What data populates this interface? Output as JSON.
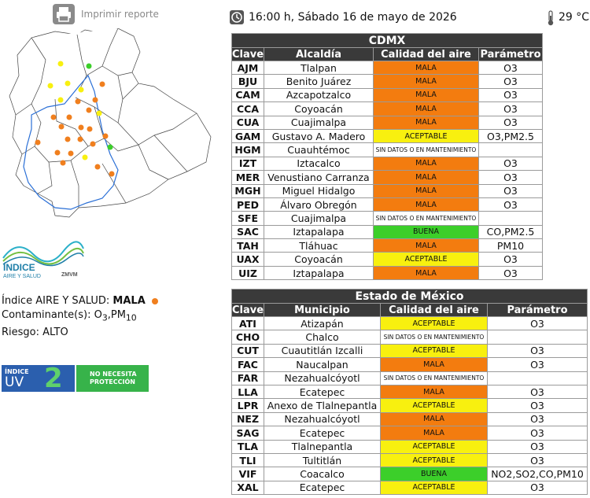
{
  "print": {
    "label": "Imprimir reporte",
    "icon": "printer-icon"
  },
  "header": {
    "datetime": "16:00 h, Sábado 16 de mayo de 2026",
    "temperature": "29 °C"
  },
  "summary": {
    "indice_label": "Índice AIRE Y SALUD:",
    "indice_value": "MALA",
    "contaminante_label": "Contaminante(s):",
    "contaminante_o": "O",
    "contaminante_o_sub": "3",
    "contaminante_pm": ",PM",
    "contaminante_pm_sub": "10",
    "riesgo_label": "Riesgo:",
    "riesgo_value": "ALTO",
    "dot_color": "#f07f1e"
  },
  "logo": {
    "line1": "ÍNDICE",
    "line2": "AIRE Y SALUD",
    "line3": "ZMVM"
  },
  "uv": {
    "label1": "ÍNDICE",
    "label2": "UV",
    "value": "2",
    "recommendation_line1": "NO NECESITA",
    "recommendation_line2": "PROTECCIÓN"
  },
  "colors": {
    "mala": "#f37c0f",
    "aceptable": "#f8f00f",
    "buena": "#3ccf2a",
    "header": "#3a3a3a"
  },
  "cdmx": {
    "title": "CDMX",
    "headers": [
      "Clave",
      "Alcaldía",
      "Calidad del aire",
      "Parámetro"
    ],
    "rows": [
      {
        "clave": "AJM",
        "nombre": "Tlalpan",
        "calidad": "MALA",
        "nivel": "mala",
        "parametro": "O3"
      },
      {
        "clave": "BJU",
        "nombre": "Benito Juárez",
        "calidad": "MALA",
        "nivel": "mala",
        "parametro": "O3"
      },
      {
        "clave": "CAM",
        "nombre": "Azcapotzalco",
        "calidad": "MALA",
        "nivel": "mala",
        "parametro": "O3"
      },
      {
        "clave": "CCA",
        "nombre": "Coyoacán",
        "calidad": "MALA",
        "nivel": "mala",
        "parametro": "O3"
      },
      {
        "clave": "CUA",
        "nombre": "Cuajimalpa",
        "calidad": "MALA",
        "nivel": "mala",
        "parametro": "O3"
      },
      {
        "clave": "GAM",
        "nombre": "Gustavo A. Madero",
        "calidad": "ACEPTABLE",
        "nivel": "aceptable",
        "parametro": "O3,PM2.5"
      },
      {
        "clave": "HGM",
        "nombre": "Cuauhtémoc",
        "calidad": "SIN DATOS O EN MANTENIMIENTO",
        "nivel": "sindatos",
        "parametro": ""
      },
      {
        "clave": "IZT",
        "nombre": "Iztacalco",
        "calidad": "MALA",
        "nivel": "mala",
        "parametro": "O3"
      },
      {
        "clave": "MER",
        "nombre": "Venustiano Carranza",
        "calidad": "MALA",
        "nivel": "mala",
        "parametro": "O3"
      },
      {
        "clave": "MGH",
        "nombre": "Miguel Hidalgo",
        "calidad": "MALA",
        "nivel": "mala",
        "parametro": "O3"
      },
      {
        "clave": "PED",
        "nombre": "Álvaro Obregón",
        "calidad": "MALA",
        "nivel": "mala",
        "parametro": "O3"
      },
      {
        "clave": "SFE",
        "nombre": "Cuajimalpa",
        "calidad": "SIN DATOS O EN MANTENIMIENTO",
        "nivel": "sindatos",
        "parametro": ""
      },
      {
        "clave": "SAC",
        "nombre": "Iztapalapa",
        "calidad": "BUENA",
        "nivel": "buena",
        "parametro": "CO,PM2.5"
      },
      {
        "clave": "TAH",
        "nombre": "Tláhuac",
        "calidad": "MALA",
        "nivel": "mala",
        "parametro": "PM10"
      },
      {
        "clave": "UAX",
        "nombre": "Coyoacán",
        "calidad": "ACEPTABLE",
        "nivel": "aceptable",
        "parametro": "O3"
      },
      {
        "clave": "UIZ",
        "nombre": "Iztapalapa",
        "calidad": "MALA",
        "nivel": "mala",
        "parametro": "O3"
      }
    ]
  },
  "edomex": {
    "title": "Estado de México",
    "headers": [
      "Clave",
      "Municipio",
      "Calidad del aire",
      "Parámetro"
    ],
    "rows": [
      {
        "clave": "ATI",
        "nombre": "Atizapán",
        "calidad": "ACEPTABLE",
        "nivel": "aceptable",
        "parametro": "O3"
      },
      {
        "clave": "CHO",
        "nombre": "Chalco",
        "calidad": "SIN DATOS O EN MANTENIMIENTO",
        "nivel": "sindatos",
        "parametro": ""
      },
      {
        "clave": "CUT",
        "nombre": "Cuautitlán Izcalli",
        "calidad": "ACEPTABLE",
        "nivel": "aceptable",
        "parametro": "O3"
      },
      {
        "clave": "FAC",
        "nombre": "Naucalpan",
        "calidad": "MALA",
        "nivel": "mala",
        "parametro": "O3"
      },
      {
        "clave": "FAR",
        "nombre": "Nezahualcóyotl",
        "calidad": "SIN DATOS O EN MANTENIMIENTO",
        "nivel": "sindatos",
        "parametro": ""
      },
      {
        "clave": "LLA",
        "nombre": "Ecatepec",
        "calidad": "MALA",
        "nivel": "mala",
        "parametro": "O3"
      },
      {
        "clave": "LPR",
        "nombre": "Anexo de Tlalnepantla",
        "calidad": "ACEPTABLE",
        "nivel": "aceptable",
        "parametro": "O3"
      },
      {
        "clave": "NEZ",
        "nombre": "Nezahualcóyotl",
        "calidad": "MALA",
        "nivel": "mala",
        "parametro": "O3"
      },
      {
        "clave": "SAG",
        "nombre": "Ecatepec",
        "calidad": "MALA",
        "nivel": "mala",
        "parametro": "O3"
      },
      {
        "clave": "TLA",
        "nombre": "Tlalnepantla",
        "calidad": "ACEPTABLE",
        "nivel": "aceptable",
        "parametro": "O3"
      },
      {
        "clave": "TLI",
        "nombre": "Tultitlán",
        "calidad": "ACEPTABLE",
        "nivel": "aceptable",
        "parametro": "O3"
      },
      {
        "clave": "VIF",
        "nombre": "Coacalco",
        "calidad": "BUENA",
        "nivel": "buena",
        "parametro": "NO2,SO2,CO,PM10"
      },
      {
        "clave": "XAL",
        "nombre": "Ecatepec",
        "calidad": "ACEPTABLE",
        "nivel": "aceptable",
        "parametro": "O3"
      }
    ]
  }
}
